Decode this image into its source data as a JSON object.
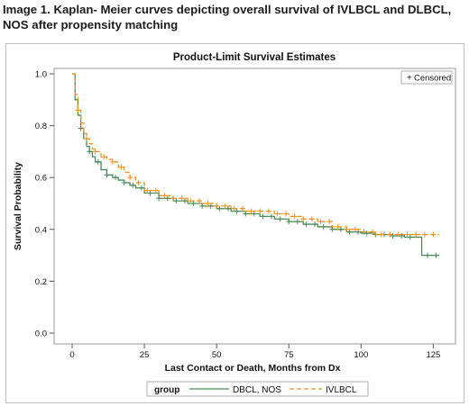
{
  "figure": {
    "caption": "Image 1. Kaplan- Meier curves depicting overall survival of IVLBCL and DLBCL,\nNOS after propensity matching"
  },
  "chart_data": {
    "type": "line",
    "step": true,
    "title": "Product-Limit Survival Estimates",
    "xlabel": "Last Contact or Death, Months from Dx",
    "ylabel": "Survival Probability",
    "xlim": [
      0,
      128
    ],
    "ylim": [
      0.0,
      1.0
    ],
    "xticks": [
      0,
      25,
      50,
      75,
      100,
      125
    ],
    "yticks": [
      0.0,
      0.2,
      0.4,
      0.6,
      0.8,
      1.0
    ],
    "ytick_labels": [
      "0.0",
      "0.2",
      "0.4",
      "0.6",
      "0.8",
      "1.0"
    ],
    "grid": false,
    "censor_legend": {
      "marker": "+",
      "label": "Censored",
      "placement": "top-right"
    },
    "legend": {
      "title": "group",
      "placement": "bottom"
    },
    "series": [
      {
        "name": "DBCL, NOS",
        "color": "#4a8a5c",
        "style": "solid",
        "x": [
          0,
          1,
          2,
          3,
          4,
          5,
          6,
          7,
          8,
          10,
          12,
          14,
          16,
          18,
          20,
          22,
          25,
          30,
          35,
          40,
          45,
          50,
          55,
          60,
          65,
          70,
          75,
          80,
          85,
          90,
          95,
          100,
          105,
          110,
          115,
          120,
          121,
          127
        ],
        "y": [
          1.0,
          0.9,
          0.84,
          0.79,
          0.75,
          0.72,
          0.7,
          0.68,
          0.66,
          0.63,
          0.61,
          0.6,
          0.59,
          0.58,
          0.57,
          0.56,
          0.54,
          0.52,
          0.51,
          0.5,
          0.49,
          0.48,
          0.47,
          0.46,
          0.45,
          0.44,
          0.43,
          0.42,
          0.41,
          0.4,
          0.39,
          0.385,
          0.38,
          0.375,
          0.37,
          0.37,
          0.3,
          0.3
        ],
        "censored_x": [
          3,
          6,
          9,
          12,
          15,
          18,
          21,
          24,
          27,
          30,
          33,
          36,
          39,
          42,
          45,
          48,
          51,
          54,
          57,
          60,
          63,
          66,
          69,
          72,
          75,
          78,
          81,
          84,
          87,
          90,
          93,
          96,
          99,
          102,
          105,
          108,
          111,
          114,
          117,
          123,
          126
        ]
      },
      {
        "name": "IVLBCL",
        "color": "#e8921f",
        "style": "dashed",
        "x": [
          0,
          1,
          2,
          3,
          4,
          5,
          6,
          7,
          8,
          10,
          12,
          14,
          16,
          18,
          20,
          22,
          25,
          30,
          35,
          40,
          45,
          50,
          55,
          60,
          65,
          70,
          75,
          80,
          85,
          90,
          95,
          100,
          105,
          110,
          115,
          120,
          127
        ],
        "y": [
          1.0,
          0.92,
          0.86,
          0.81,
          0.77,
          0.75,
          0.73,
          0.71,
          0.7,
          0.68,
          0.67,
          0.66,
          0.64,
          0.62,
          0.6,
          0.58,
          0.55,
          0.53,
          0.52,
          0.51,
          0.5,
          0.49,
          0.48,
          0.47,
          0.47,
          0.46,
          0.45,
          0.44,
          0.43,
          0.41,
          0.4,
          0.39,
          0.38,
          0.38,
          0.38,
          0.38,
          0.38
        ],
        "censored_x": [
          2,
          5,
          8,
          11,
          14,
          17,
          20,
          23,
          26,
          29,
          32,
          35,
          38,
          41,
          44,
          47,
          50,
          53,
          56,
          59,
          62,
          65,
          68,
          71,
          74,
          77,
          80,
          83,
          86,
          89,
          92,
          95,
          98,
          101,
          104,
          107,
          110,
          113,
          116,
          119,
          122,
          125
        ]
      }
    ]
  }
}
